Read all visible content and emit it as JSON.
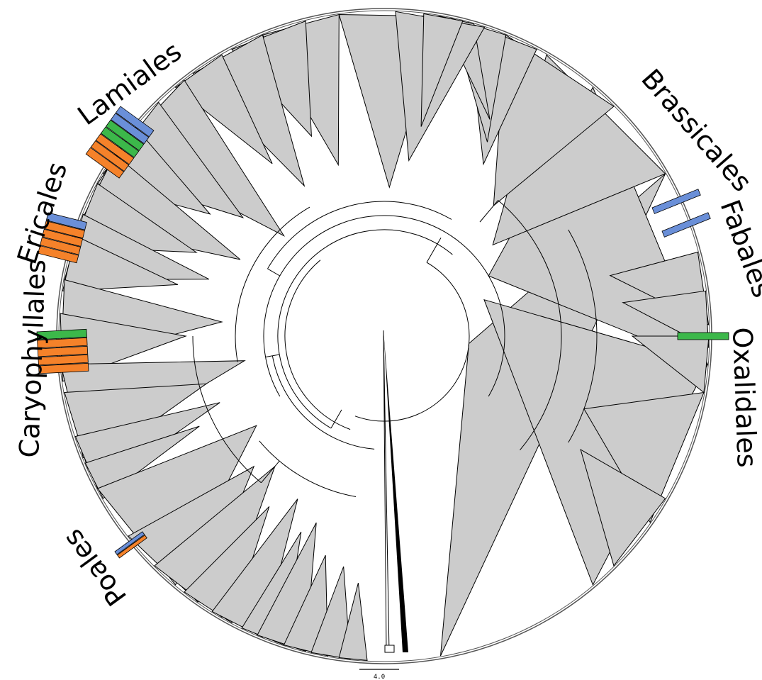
{
  "colors": {
    "clade_fill": "#cccccc",
    "stroke": "#000000",
    "blue": "#6a8fd8",
    "green": "#3cb84a",
    "orange": "#f5822a",
    "background": "#ffffff"
  },
  "labels": {
    "lamiales": "Lamiales",
    "ericales": "Ericales",
    "caryophyllales": "Caryophyllales",
    "poales": "Poales",
    "brassicales": "Brassicales",
    "fabales": "Fabales",
    "oxalidales": "Oxalidales"
  },
  "scale_bar": {
    "label": "4.0",
    "value": 4.0
  },
  "markers": {
    "lamiales": [
      "blue",
      "blue",
      "green",
      "green",
      "orange",
      "orange",
      "orange"
    ],
    "ericales": [
      "blue",
      "orange",
      "orange",
      "orange",
      "orange"
    ],
    "caryophyllales": [
      "green",
      "orange",
      "orange",
      "orange",
      "orange"
    ],
    "poales": [
      "blue",
      "orange"
    ],
    "brassicales": [
      "blue"
    ],
    "fabales": [
      "blue"
    ],
    "oxalidales": [
      "green"
    ]
  }
}
